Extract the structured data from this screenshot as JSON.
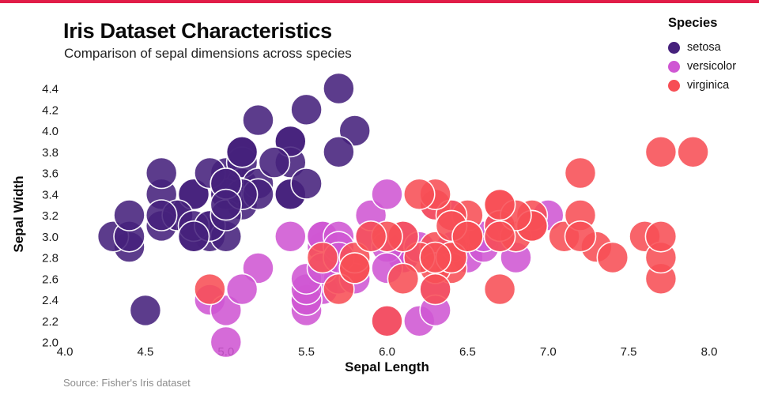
{
  "accent_color": "#e11d48",
  "header": {
    "title": "Iris Dataset Characteristics",
    "subtitle": "Comparison of sepal dimensions across species"
  },
  "legend": {
    "title": "Species",
    "items": [
      {
        "label": "setosa",
        "color": "#46217c"
      },
      {
        "label": "versicolor",
        "color": "#cf56d3"
      },
      {
        "label": "virginica",
        "color": "#f74e55"
      }
    ]
  },
  "source": "Source: Fisher's Iris dataset",
  "chart_data": {
    "type": "scatter",
    "title": "Iris Dataset Characteristics",
    "subtitle": "Comparison of sepal dimensions across species",
    "xlabel": "Sepal Length",
    "ylabel": "Sepal Width",
    "xlim": [
      4.0,
      8.0
    ],
    "ylim": [
      2.0,
      4.4
    ],
    "x_ticks": [
      4.0,
      4.5,
      5.0,
      5.5,
      6.0,
      6.5,
      7.0,
      7.5,
      8.0
    ],
    "y_ticks": [
      2.0,
      2.2,
      2.4,
      2.6,
      2.8,
      3.0,
      3.2,
      3.4,
      3.6,
      3.8,
      4.0,
      4.2,
      4.4
    ],
    "grid": false,
    "legend_position": "top-right",
    "marker_radius_px": 19.5,
    "series": [
      {
        "name": "setosa",
        "color": "#46217c",
        "points": [
          [
            5.1,
            3.5
          ],
          [
            4.9,
            3.0
          ],
          [
            4.7,
            3.2
          ],
          [
            4.6,
            3.1
          ],
          [
            5.0,
            3.6
          ],
          [
            5.4,
            3.9
          ],
          [
            4.6,
            3.4
          ],
          [
            5.0,
            3.4
          ],
          [
            4.4,
            2.9
          ],
          [
            4.9,
            3.1
          ],
          [
            5.4,
            3.7
          ],
          [
            4.8,
            3.4
          ],
          [
            4.8,
            3.0
          ],
          [
            4.3,
            3.0
          ],
          [
            5.8,
            4.0
          ],
          [
            5.7,
            4.4
          ],
          [
            5.4,
            3.9
          ],
          [
            5.1,
            3.5
          ],
          [
            5.7,
            3.8
          ],
          [
            5.1,
            3.8
          ],
          [
            5.4,
            3.4
          ],
          [
            5.1,
            3.7
          ],
          [
            4.6,
            3.6
          ],
          [
            5.1,
            3.3
          ],
          [
            4.8,
            3.4
          ],
          [
            5.0,
            3.0
          ],
          [
            5.0,
            3.4
          ],
          [
            5.2,
            3.5
          ],
          [
            5.2,
            3.4
          ],
          [
            4.7,
            3.2
          ],
          [
            4.8,
            3.1
          ],
          [
            5.4,
            3.4
          ],
          [
            5.2,
            4.1
          ],
          [
            5.5,
            4.2
          ],
          [
            4.9,
            3.1
          ],
          [
            5.0,
            3.2
          ],
          [
            5.5,
            3.5
          ],
          [
            4.9,
            3.6
          ],
          [
            4.4,
            3.0
          ],
          [
            5.1,
            3.4
          ],
          [
            5.0,
            3.5
          ],
          [
            4.5,
            2.3
          ],
          [
            4.4,
            3.2
          ],
          [
            5.0,
            3.5
          ],
          [
            5.1,
            3.8
          ],
          [
            4.8,
            3.0
          ],
          [
            5.1,
            3.8
          ],
          [
            4.6,
            3.2
          ],
          [
            5.3,
            3.7
          ],
          [
            5.0,
            3.3
          ]
        ]
      },
      {
        "name": "versicolor",
        "color": "#cf56d3",
        "points": [
          [
            7.0,
            3.2
          ],
          [
            6.4,
            3.2
          ],
          [
            6.9,
            3.1
          ],
          [
            5.5,
            2.3
          ],
          [
            6.5,
            2.8
          ],
          [
            5.7,
            2.8
          ],
          [
            6.3,
            3.3
          ],
          [
            4.9,
            2.4
          ],
          [
            6.6,
            2.9
          ],
          [
            5.2,
            2.7
          ],
          [
            5.0,
            2.0
          ],
          [
            5.9,
            3.0
          ],
          [
            6.0,
            2.2
          ],
          [
            6.1,
            2.9
          ],
          [
            5.6,
            2.9
          ],
          [
            6.7,
            3.1
          ],
          [
            5.6,
            3.0
          ],
          [
            5.8,
            2.7
          ],
          [
            6.2,
            2.2
          ],
          [
            5.6,
            2.5
          ],
          [
            5.9,
            3.2
          ],
          [
            6.1,
            2.8
          ],
          [
            6.3,
            2.5
          ],
          [
            6.1,
            2.8
          ],
          [
            6.4,
            2.9
          ],
          [
            6.6,
            3.0
          ],
          [
            6.8,
            2.8
          ],
          [
            6.7,
            3.0
          ],
          [
            6.0,
            2.9
          ],
          [
            5.7,
            2.6
          ],
          [
            5.5,
            2.4
          ],
          [
            5.5,
            2.4
          ],
          [
            5.8,
            2.7
          ],
          [
            6.0,
            2.7
          ],
          [
            5.4,
            3.0
          ],
          [
            6.0,
            3.4
          ],
          [
            6.7,
            3.1
          ],
          [
            6.3,
            2.3
          ],
          [
            5.6,
            3.0
          ],
          [
            5.5,
            2.5
          ],
          [
            5.5,
            2.6
          ],
          [
            6.1,
            3.0
          ],
          [
            5.8,
            2.6
          ],
          [
            5.0,
            2.3
          ],
          [
            5.6,
            2.7
          ],
          [
            5.7,
            3.0
          ],
          [
            5.7,
            2.9
          ],
          [
            6.2,
            2.9
          ],
          [
            5.1,
            2.5
          ],
          [
            5.7,
            2.8
          ]
        ]
      },
      {
        "name": "virginica",
        "color": "#f74e55",
        "points": [
          [
            6.3,
            3.3
          ],
          [
            5.8,
            2.7
          ],
          [
            7.1,
            3.0
          ],
          [
            6.3,
            2.9
          ],
          [
            6.5,
            3.0
          ],
          [
            7.6,
            3.0
          ],
          [
            4.9,
            2.5
          ],
          [
            7.3,
            2.9
          ],
          [
            6.7,
            2.5
          ],
          [
            7.2,
            3.6
          ],
          [
            6.5,
            3.2
          ],
          [
            6.4,
            2.7
          ],
          [
            6.8,
            3.0
          ],
          [
            5.7,
            2.5
          ],
          [
            5.8,
            2.8
          ],
          [
            6.4,
            3.2
          ],
          [
            6.5,
            3.0
          ],
          [
            7.7,
            3.8
          ],
          [
            7.7,
            2.6
          ],
          [
            6.0,
            2.2
          ],
          [
            6.9,
            3.2
          ],
          [
            5.6,
            2.8
          ],
          [
            7.7,
            2.8
          ],
          [
            6.3,
            2.7
          ],
          [
            6.7,
            3.3
          ],
          [
            7.2,
            3.2
          ],
          [
            6.2,
            2.8
          ],
          [
            6.1,
            3.0
          ],
          [
            6.4,
            2.8
          ],
          [
            7.2,
            3.0
          ],
          [
            7.4,
            2.8
          ],
          [
            7.9,
            3.8
          ],
          [
            6.4,
            2.8
          ],
          [
            6.3,
            2.8
          ],
          [
            6.1,
            2.6
          ],
          [
            7.7,
            3.0
          ],
          [
            6.3,
            3.4
          ],
          [
            6.4,
            3.1
          ],
          [
            6.0,
            3.0
          ],
          [
            6.9,
            3.1
          ],
          [
            6.7,
            3.1
          ],
          [
            6.9,
            3.1
          ],
          [
            5.8,
            2.7
          ],
          [
            6.8,
            3.2
          ],
          [
            6.7,
            3.3
          ],
          [
            6.7,
            3.0
          ],
          [
            6.3,
            2.5
          ],
          [
            6.5,
            3.0
          ],
          [
            6.2,
            3.4
          ],
          [
            5.9,
            3.0
          ]
        ]
      }
    ]
  }
}
